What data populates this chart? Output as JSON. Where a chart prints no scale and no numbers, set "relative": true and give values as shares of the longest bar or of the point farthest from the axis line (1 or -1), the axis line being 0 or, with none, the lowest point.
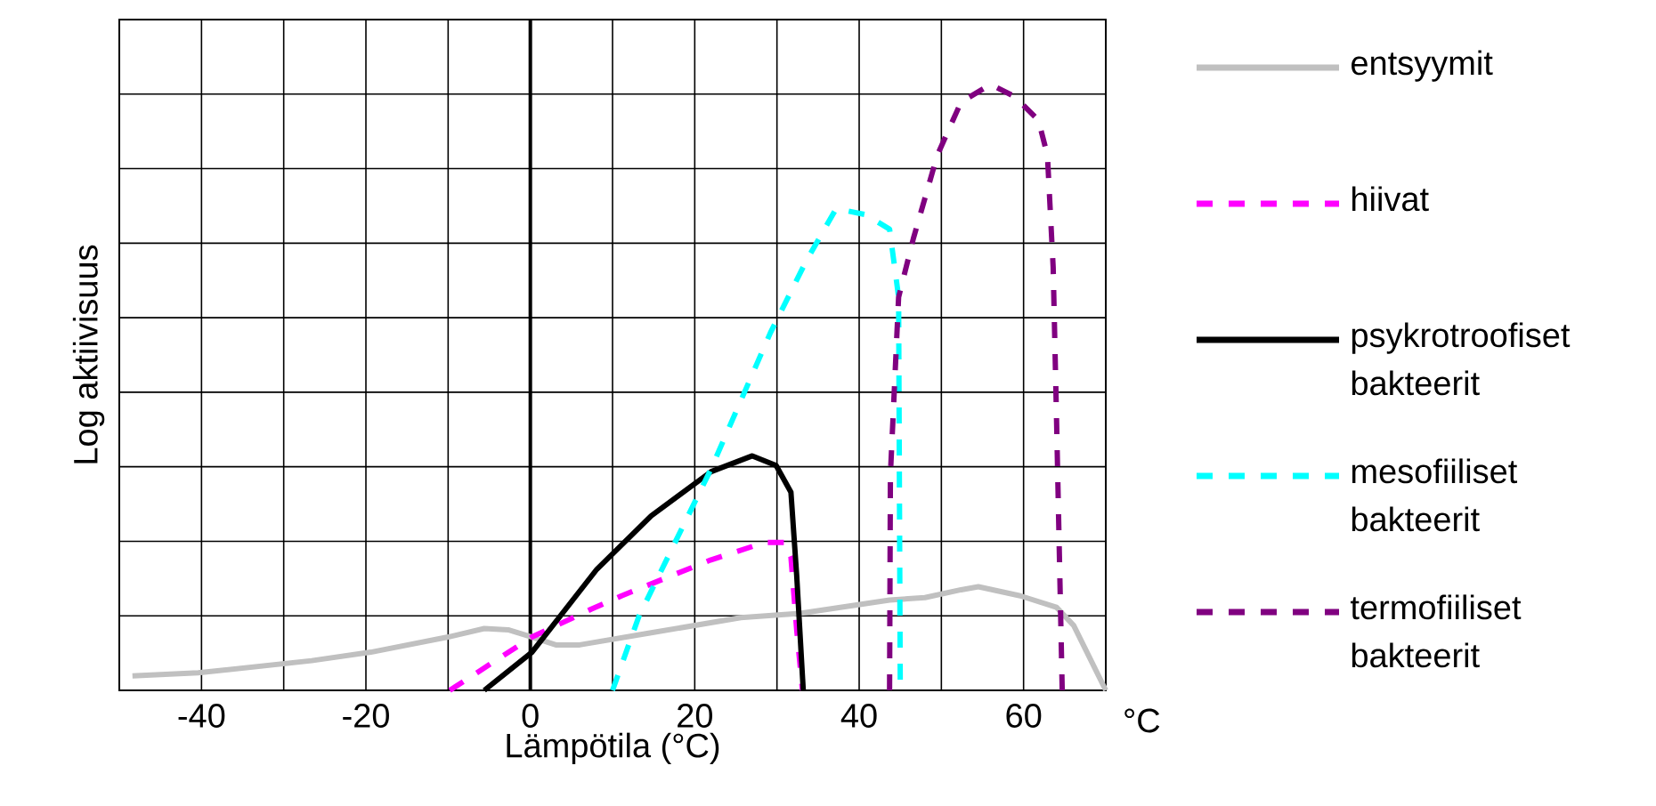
{
  "chart_data": {
    "type": "line",
    "xlabel": "Lämpötila (°C)",
    "ylabel": "Log aktiivisuus",
    "annotations": [
      "°C"
    ],
    "relative": true,
    "grid": true,
    "legend": "right",
    "tick_labels": "x",
    "xlim": [
      -50,
      70
    ],
    "xticks": [
      {
        "value": -50,
        "label": null
      },
      -40,
      {
        "value": -30,
        "label": null
      },
      -20,
      {
        "value": -10,
        "label": null
      },
      0,
      {
        "value": 10,
        "label": null
      },
      20,
      {
        "value": 30,
        "label": null
      },
      40,
      {
        "value": 50,
        "label": null
      },
      60,
      {
        "value": 70,
        "label": null
      }
    ],
    "ref_lines": [
      {
        "axis": "x",
        "value": 0,
        "color": "#000000"
      }
    ],
    "series": [
      {
        "name": "entsyymit",
        "color": "#c0c0c0",
        "line_style": "solid",
        "x": [
          -48.4,
          -40.4,
          -26.6,
          -19.4,
          -10,
          -5.6,
          -2.7,
          0.2,
          3.1,
          6,
          14.7,
          25.6,
          32.8,
          43.7,
          48,
          52.4,
          54.5,
          59.6,
          64,
          66.1,
          70
        ],
        "values": [
          0.024,
          0.029,
          0.049,
          0.063,
          0.088,
          0.102,
          0.1,
          0.088,
          0.075,
          0.075,
          0.095,
          0.12,
          0.127,
          0.149,
          0.153,
          0.166,
          0.171,
          0.156,
          0.137,
          0.107,
          0
        ]
      },
      {
        "name": "hiivat",
        "color": "#ff00ff",
        "line_style": "dashed",
        "x": [
          -9.8,
          0.2,
          7.4,
          11.1,
          21.9,
          28.5,
          31,
          31.7,
          32.4,
          33.1
        ],
        "values": [
          0,
          0.088,
          0.134,
          0.156,
          0.215,
          0.244,
          0.244,
          0.22,
          0.1,
          0
        ]
      },
      {
        "name": "psykrotroofiset bakteerit",
        "color": "#000000",
        "line_style": "solid",
        "x": [
          -5.6,
          0.2,
          8.1,
          14.7,
          22,
          27,
          29.9,
          31.7,
          32.4,
          33.2
        ],
        "values": [
          0,
          0.063,
          0.2,
          0.288,
          0.361,
          0.387,
          0.371,
          0.327,
          0.19,
          0
        ]
      },
      {
        "name": "mesofiiliset bakteerit",
        "color": "#00ffff",
        "line_style": "dashed",
        "x": [
          10,
          13.2,
          22,
          29.2,
          33.5,
          37.2,
          40.8,
          43.7,
          44.8,
          45
        ],
        "values": [
          0,
          0.122,
          0.366,
          0.59,
          0.707,
          0.795,
          0.785,
          0.761,
          0.649,
          0
        ]
      },
      {
        "name": "termofiiliset bakteerit",
        "color": "#800080",
        "line_style": "dashed",
        "x": [
          43.7,
          43.8,
          44.8,
          46.6,
          49.5,
          52.4,
          56,
          58.9,
          61.8,
          62.9,
          63.6,
          64,
          64.7
        ],
        "values": [
          0,
          0.356,
          0.649,
          0.746,
          0.883,
          0.971,
          1.0,
          0.98,
          0.941,
          0.883,
          0.698,
          0.454,
          0
        ]
      }
    ]
  }
}
